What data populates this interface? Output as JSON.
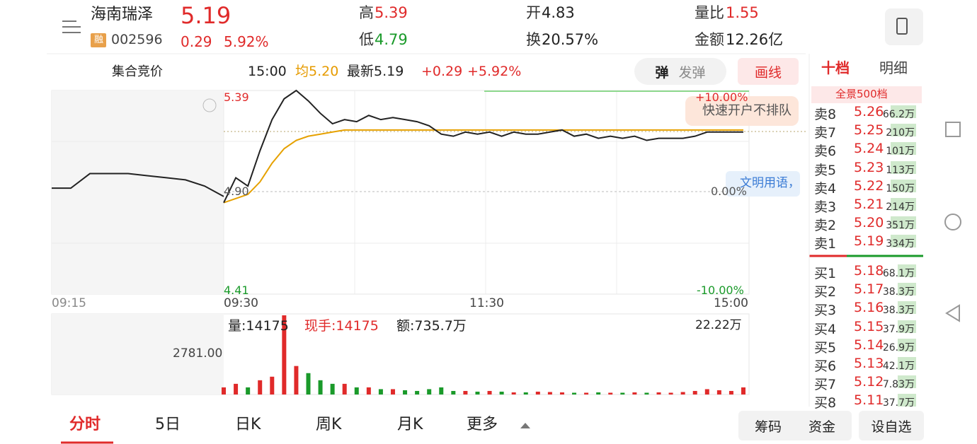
{
  "header": {
    "name": "海南瑞泽",
    "price": "5.19",
    "badge": "融",
    "code": "002596",
    "change": "0.29",
    "change_pct": "5.92%",
    "stats": [
      {
        "label": "高",
        "value": "5.39"
      },
      {
        "label": "低",
        "value": "4.79"
      },
      {
        "label": "开",
        "value": "4.83"
      },
      {
        "label": "换",
        "value": "20.57%"
      },
      {
        "label": "量比",
        "value": "1.55"
      },
      {
        "label": "金额",
        "value": "12.26亿"
      }
    ]
  },
  "toolbar": {
    "auction": "集合竞价",
    "time": "15:00",
    "avg": "均5.20",
    "latest": "最新5.19",
    "change": "+0.29",
    "change_pct": "+5.92%",
    "danmu": "弹",
    "send": "发弹",
    "draw": "画线"
  },
  "price_axis": {
    "high": "5.39",
    "mid": "4.90",
    "low": "4.41",
    "pct_high": "+10.00%",
    "pct_mid": "0.00%",
    "pct_low": "-10.00%"
  },
  "overlay": {
    "promo": "快速开户不排队",
    "chat": "文明用语，"
  },
  "time_axis": [
    "09:15",
    "09:30",
    "11:30",
    "15:00"
  ],
  "volume_info": {
    "volume": "量:14175",
    "hand": "现手:14175",
    "amount": "额:735.7万",
    "max_label": "22.22万",
    "auction": "2781.00"
  },
  "intraday": {
    "ylim": [
      4.41,
      5.39
    ],
    "volume_ylim": [
      0,
      22.22
    ],
    "auction_prices": [
      4.92,
      4.92,
      4.99,
      4.99,
      4.99,
      4.98,
      4.97,
      4.96,
      4.93,
      4.88
    ],
    "prices": [
      4.85,
      4.97,
      4.93,
      5.1,
      5.25,
      5.35,
      5.39,
      5.34,
      5.28,
      5.23,
      5.25,
      5.24,
      5.27,
      5.25,
      5.26,
      5.25,
      5.24,
      5.22,
      5.18,
      5.17,
      5.19,
      5.18,
      5.19,
      5.17,
      5.19,
      5.18,
      5.18,
      5.19,
      5.2,
      5.17,
      5.18,
      5.16,
      5.17,
      5.16,
      5.17,
      5.15,
      5.16,
      5.16,
      5.16,
      5.17,
      5.19,
      5.19,
      5.19,
      5.19
    ],
    "avg_prices": [
      4.85,
      4.87,
      4.89,
      4.95,
      5.04,
      5.11,
      5.15,
      5.17,
      5.18,
      5.19,
      5.2,
      5.2,
      5.2,
      5.2,
      5.2,
      5.2,
      5.2,
      5.2,
      5.2,
      5.2,
      5.2,
      5.2,
      5.2,
      5.2,
      5.2,
      5.2,
      5.2,
      5.2,
      5.2,
      5.2,
      5.2,
      5.2,
      5.2,
      5.2,
      5.2,
      5.2,
      5.2,
      5.2,
      5.2,
      5.2,
      5.2,
      5.2,
      5.2,
      5.2
    ],
    "volumes": [
      2,
      3,
      2,
      4,
      5,
      22.22,
      8,
      6,
      4,
      3,
      3,
      2,
      2,
      1.5,
      1.5,
      1.2,
      1,
      1.5,
      2,
      1,
      1,
      0.8,
      1,
      0.8,
      0.6,
      0.6,
      0.8,
      0.7,
      0.6,
      0.5,
      0.5,
      0.6,
      0.5,
      0.5,
      0.6,
      0.5,
      0.6,
      0.5,
      0.7,
      1,
      1.5,
      1.2,
      1,
      2
    ]
  },
  "order_book": {
    "tabs": [
      "十档",
      "明细"
    ],
    "panorama": "全景500档",
    "sells": [
      [
        "卖8",
        "5.26",
        "66.2万"
      ],
      [
        "卖7",
        "5.25",
        "210万"
      ],
      [
        "卖6",
        "5.24",
        "101万"
      ],
      [
        "卖5",
        "5.23",
        "113万"
      ],
      [
        "卖4",
        "5.22",
        "150万"
      ],
      [
        "卖3",
        "5.21",
        "214万"
      ],
      [
        "卖2",
        "5.20",
        "351万"
      ],
      [
        "卖1",
        "5.19",
        "334万"
      ]
    ],
    "buys": [
      [
        "买1",
        "5.18",
        "68.1万"
      ],
      [
        "买2",
        "5.17",
        "38.3万"
      ],
      [
        "买3",
        "5.16",
        "38.3万"
      ],
      [
        "买4",
        "5.15",
        "37.9万"
      ],
      [
        "买5",
        "5.14",
        "26.9万"
      ],
      [
        "买6",
        "5.13",
        "42.1万"
      ],
      [
        "买7",
        "5.12",
        "7.83万"
      ],
      [
        "买8",
        "5.11",
        "37.7万"
      ]
    ]
  },
  "tabs": [
    "分时",
    "5日",
    "日K",
    "周K",
    "月K",
    "更多"
  ],
  "bottom_buttons": [
    "筹码",
    "资金",
    "设自选"
  ]
}
